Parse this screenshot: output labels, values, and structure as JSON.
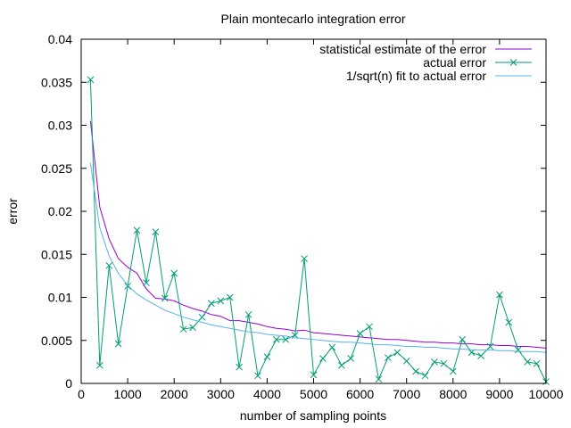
{
  "chart_data": {
    "type": "line",
    "title": "Plain montecarlo integration error",
    "xlabel": "number of sampling points",
    "ylabel": "error",
    "xlim": [
      0,
      10000
    ],
    "ylim": [
      0,
      0.04
    ],
    "xticks": [
      "0",
      "1000",
      "2000",
      "3000",
      "4000",
      "5000",
      "6000",
      "7000",
      "8000",
      "9000",
      "10000"
    ],
    "yticks": [
      "0",
      "0.005",
      "0.01",
      "0.015",
      "0.02",
      "0.025",
      "0.03",
      "0.035",
      "0.04"
    ],
    "legend_position": "top-right",
    "series": [
      {
        "name": "statistical estimate of the error",
        "color": "#9400d3",
        "marker": "none",
        "x": [
          200,
          400,
          600,
          800,
          1000,
          1200,
          1400,
          1600,
          1800,
          2000,
          2200,
          2400,
          2600,
          2800,
          3000,
          3200,
          3400,
          3600,
          3800,
          4000,
          4200,
          4400,
          4600,
          4800,
          5000,
          5200,
          5400,
          5600,
          5800,
          6000,
          6200,
          6400,
          6600,
          6800,
          7000,
          7200,
          7400,
          7600,
          7800,
          8000,
          8200,
          8400,
          8600,
          8800,
          9000,
          9200,
          9400,
          9600,
          9800,
          10000
        ],
        "y": [
          0.0305,
          0.0205,
          0.0168,
          0.0145,
          0.0135,
          0.0128,
          0.011,
          0.0099,
          0.0098,
          0.0096,
          0.0091,
          0.0087,
          0.0084,
          0.008,
          0.0078,
          0.0073,
          0.0073,
          0.0071,
          0.0069,
          0.0066,
          0.0064,
          0.0063,
          0.0061,
          0.0062,
          0.0059,
          0.0058,
          0.0057,
          0.0056,
          0.0055,
          0.0054,
          0.0053,
          0.0052,
          0.0051,
          0.0051,
          0.005,
          0.0049,
          0.0048,
          0.0048,
          0.0047,
          0.0047,
          0.0046,
          0.0046,
          0.0045,
          0.0045,
          0.0044,
          0.0044,
          0.0043,
          0.0043,
          0.0042,
          0.0041
        ]
      },
      {
        "name": "actual error",
        "color": "#009e73",
        "marker": "x",
        "x": [
          200,
          400,
          600,
          800,
          1000,
          1200,
          1400,
          1600,
          1800,
          2000,
          2200,
          2400,
          2600,
          2800,
          3000,
          3200,
          3400,
          3600,
          3800,
          4000,
          4200,
          4400,
          4600,
          4800,
          5000,
          5200,
          5400,
          5600,
          5800,
          6000,
          6200,
          6400,
          6600,
          6800,
          7000,
          7200,
          7400,
          7600,
          7800,
          8000,
          8200,
          8400,
          8600,
          8800,
          9000,
          9200,
          9400,
          9600,
          9800,
          10000
        ],
        "y": [
          0.0353,
          0.0021,
          0.0137,
          0.0046,
          0.0113,
          0.0178,
          0.0117,
          0.0176,
          0.0099,
          0.0128,
          0.0063,
          0.0065,
          0.0077,
          0.0093,
          0.0096,
          0.01,
          0.0019,
          0.008,
          0.0009,
          0.0031,
          0.0051,
          0.0051,
          0.0056,
          0.0145,
          0.001,
          0.0029,
          0.0042,
          0.0021,
          0.0029,
          0.0058,
          0.0066,
          0.0005,
          0.003,
          0.0036,
          0.0026,
          0.0014,
          0.0009,
          0.0025,
          0.0023,
          0.0014,
          0.0051,
          0.0036,
          0.0032,
          0.0043,
          0.0103,
          0.0071,
          0.0039,
          0.0025,
          0.0023,
          0.0002
        ]
      },
      {
        "name": "1/sqrt(n) fit to actual error",
        "color": "#56b4e9",
        "marker": "none",
        "x": [
          200,
          400,
          600,
          800,
          1000,
          1200,
          1400,
          1600,
          1800,
          2000,
          2200,
          2400,
          2600,
          2800,
          3000,
          3200,
          3400,
          3600,
          3800,
          4000,
          4200,
          4400,
          4600,
          4800,
          5000,
          5200,
          5400,
          5600,
          5800,
          6000,
          6200,
          6400,
          6600,
          6800,
          7000,
          7200,
          7400,
          7600,
          7800,
          8000,
          8200,
          8400,
          8600,
          8800,
          9000,
          9200,
          9400,
          9600,
          9800,
          10000
        ],
        "y": [
          0.0256,
          0.0181,
          0.0148,
          0.0128,
          0.0114,
          0.0104,
          0.0097,
          0.0091,
          0.0085,
          0.0081,
          0.0077,
          0.0074,
          0.0071,
          0.0068,
          0.0066,
          0.0064,
          0.0062,
          0.006,
          0.0059,
          0.0057,
          0.0056,
          0.0055,
          0.0053,
          0.0052,
          0.0051,
          0.005,
          0.0049,
          0.0048,
          0.0048,
          0.0047,
          0.0046,
          0.0045,
          0.0045,
          0.0044,
          0.0043,
          0.0043,
          0.0042,
          0.0042,
          0.0041,
          0.004,
          0.004,
          0.0039,
          0.0039,
          0.0039,
          0.0038,
          0.0038,
          0.0037,
          0.0037,
          0.0037,
          0.0036
        ]
      }
    ]
  }
}
